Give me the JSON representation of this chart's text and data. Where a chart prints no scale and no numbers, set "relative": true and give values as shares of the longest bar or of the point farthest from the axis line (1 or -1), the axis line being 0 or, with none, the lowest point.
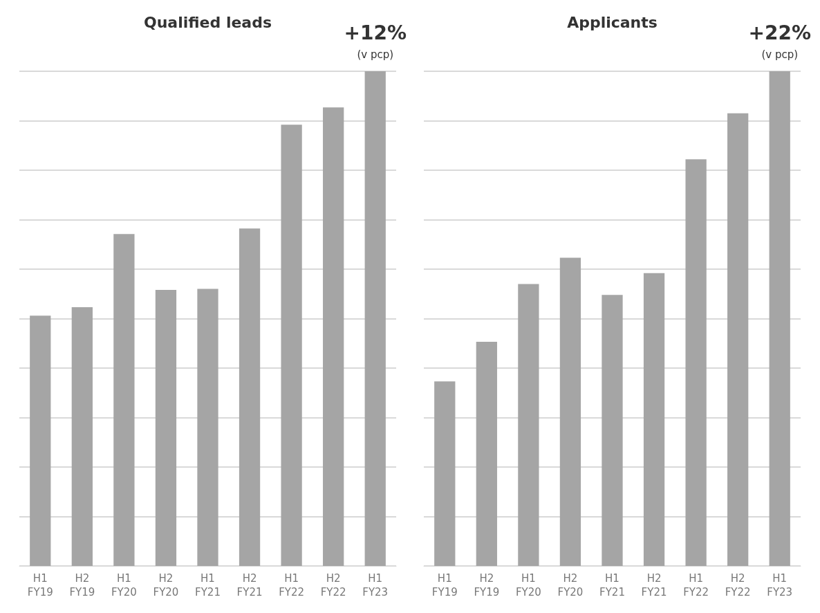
{
  "chart_data": [
    {
      "type": "bar",
      "title": "Qualified leads",
      "relative": true,
      "grid": "y",
      "categories": [
        "H1\nFY19",
        "H2\nFY19",
        "H1\nFY20",
        "H2\nFY20",
        "H1\nFY21",
        "H2\nFY21",
        "H1\nFY22",
        "H2\nFY22",
        "H1\nFY23"
      ],
      "color": "#a5a5a5",
      "values": [
        0.506,
        0.523,
        0.671,
        0.558,
        0.56,
        0.682,
        0.892,
        0.927,
        1
      ],
      "annotations": [
        "+12%",
        "(v pcp)"
      ]
    },
    {
      "type": "bar",
      "title": "Applicants",
      "relative": true,
      "grid": "y",
      "categories": [
        "H1\nFY19",
        "H2\nFY19",
        "H1\nFY20",
        "H2\nFY20",
        "H1\nFY21",
        "H2\nFY21",
        "H1\nFY22",
        "H2\nFY22",
        "H1\nFY23"
      ],
      "color": "#a5a5a5",
      "values": [
        0.373,
        0.453,
        0.57,
        0.623,
        0.548,
        0.592,
        0.822,
        0.915,
        1
      ],
      "annotations": [
        "+22%",
        "(v pcp)"
      ]
    }
  ]
}
